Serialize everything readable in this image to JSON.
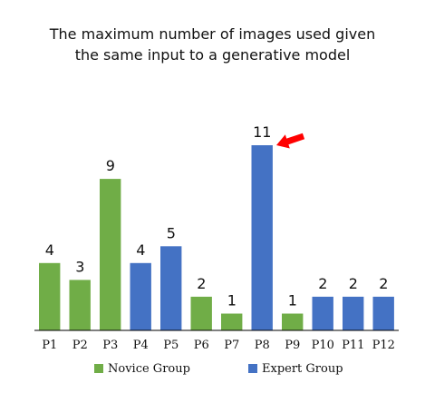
{
  "chart_data": {
    "type": "bar",
    "title_lines": [
      "The maximum number of images used given",
      "the same input to a generative model"
    ],
    "xlabel": "",
    "ylabel": "",
    "ylim": [
      0,
      11
    ],
    "grid": false,
    "legend_placement": "bottom",
    "categories": [
      "P1",
      "P2",
      "P3",
      "P4",
      "P5",
      "P6",
      "P7",
      "P8",
      "P9",
      "P10",
      "P11",
      "P12"
    ],
    "values": [
      4,
      3,
      9,
      4,
      5,
      2,
      1,
      11,
      1,
      2,
      2,
      2
    ],
    "groups": [
      "Novice Group",
      "Novice Group",
      "Novice Group",
      "Expert Group",
      "Expert Group",
      "Novice Group",
      "Novice Group",
      "Expert Group",
      "Novice Group",
      "Expert Group",
      "Expert Group",
      "Expert Group"
    ],
    "series": [
      {
        "name": "Novice Group",
        "color": "#70ad47"
      },
      {
        "name": "Expert Group",
        "color": "#4472c4"
      }
    ],
    "annotation": {
      "type": "arrow",
      "target_category": "P8",
      "color": "#ff0000"
    }
  }
}
